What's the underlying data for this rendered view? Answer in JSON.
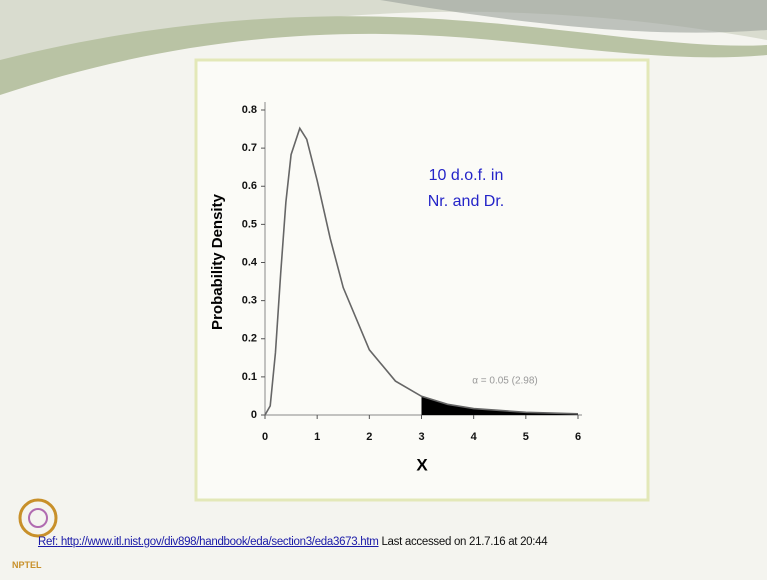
{
  "chart_data": {
    "type": "line",
    "x": [
      0,
      0.1,
      0.2,
      0.3,
      0.4,
      0.5,
      0.667,
      0.8,
      1,
      1.25,
      1.5,
      2,
      2.5,
      3,
      3.5,
      4,
      5,
      6
    ],
    "values": [
      0,
      0.024,
      0.163,
      0.37,
      0.558,
      0.683,
      0.752,
      0.723,
      0.615,
      0.463,
      0.334,
      0.171,
      0.089,
      0.049,
      0.028,
      0.017,
      0.007,
      0.003
    ],
    "color": "#666666",
    "shade_from": 3,
    "shade_color": "#000000",
    "xlim": [
      0,
      6
    ],
    "xticks": [
      0,
      1,
      2,
      3,
      4,
      5,
      6
    ],
    "ylim": [
      0,
      0.8
    ],
    "yticks": [
      0,
      0.1,
      0.2,
      0.3,
      0.4,
      0.5,
      0.6,
      0.7,
      0.8
    ],
    "xlabel": "X",
    "ylabel": "Probability Density",
    "annotation_lines": [
      "10 d.o.f. in",
      "Nr. and Dr."
    ],
    "alpha_label": "α = 0.05 (2.98)"
  },
  "reference": {
    "label": "Ref:",
    "url": "http://www.itl.nist.gov/div898/handbook/eda/section3/eda3673.htm",
    "note": "Last accessed on 21.7.16 at 20:44"
  },
  "logo": "NPTEL"
}
